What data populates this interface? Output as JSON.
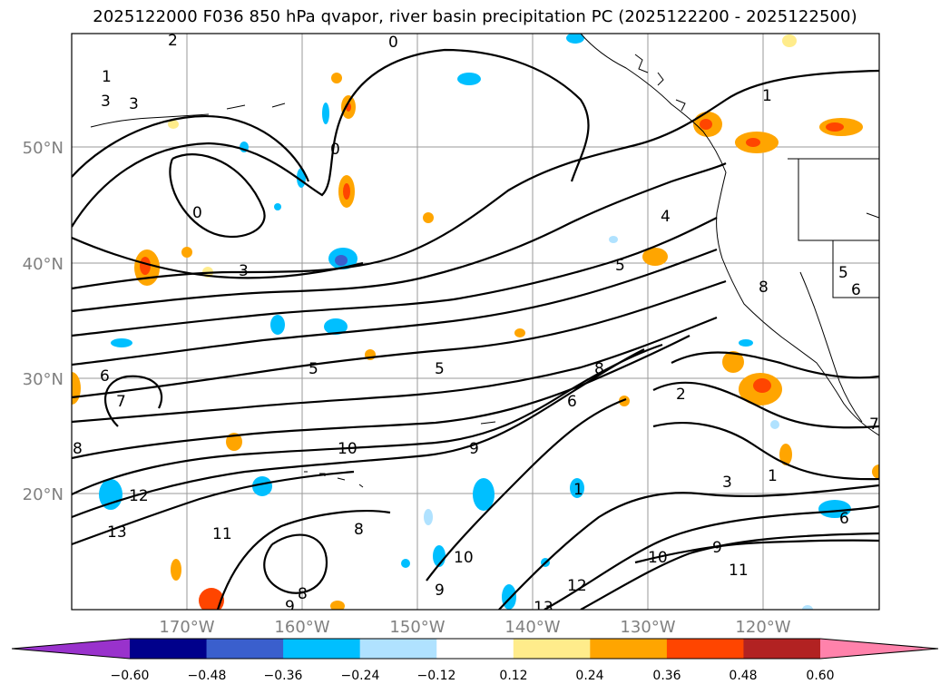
{
  "title": "2025122000 F036 850 hPa qvapor, river basin precipitation PC (2025122200 - 2025122500)",
  "map": {
    "lat_labels": [
      "50°N",
      "40°N",
      "30°N",
      "20°N"
    ],
    "lon_labels": [
      "170°W",
      "160°W",
      "150°W",
      "140°W",
      "130°W",
      "120°W"
    ],
    "contour_labels": [
      "1",
      "2",
      "3",
      "3",
      "0",
      "0",
      "0",
      "3",
      "4",
      "5",
      "5",
      "5",
      "6",
      "7",
      "8",
      "10",
      "9",
      "6",
      "8",
      "1",
      "2",
      "3",
      "12",
      "13",
      "11",
      "8",
      "10",
      "9",
      "8",
      "9",
      "10",
      "12",
      "13",
      "11",
      "9",
      "6",
      "1",
      "1",
      "7",
      "5",
      "8",
      "6"
    ],
    "grid": true,
    "colors": {
      "frame": "#000000",
      "grid": "#9a9a9a",
      "contour": "#000000"
    }
  },
  "colorbar": {
    "ticks": [
      "−0.60",
      "−0.48",
      "−0.36",
      "−0.24",
      "−0.12",
      "0.12",
      "0.24",
      "0.36",
      "0.48",
      "0.60"
    ],
    "colors": [
      "#9932cc",
      "#00008b",
      "#3a5fcd",
      "#00bfff",
      "#b0e2ff",
      "#ffffff",
      "#ffec8b",
      "#ffa500",
      "#ff4500",
      "#b22222",
      "#ff82ab"
    ]
  }
}
